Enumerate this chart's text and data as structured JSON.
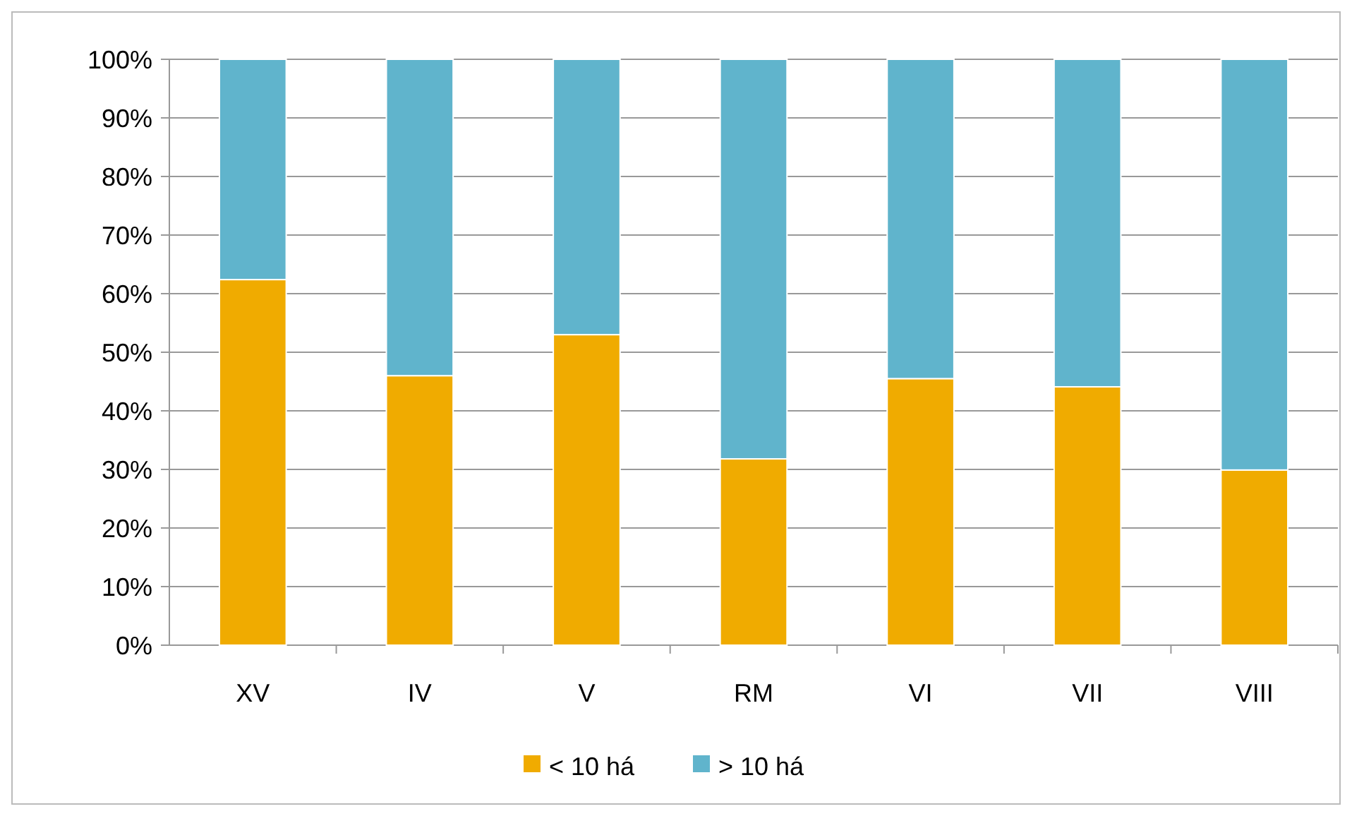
{
  "chart_data": {
    "type": "bar",
    "stacked": true,
    "categories": [
      "XV",
      "IV",
      "V",
      "RM",
      "VI",
      "VII",
      "VIII"
    ],
    "series": [
      {
        "name": "< 10 há",
        "color": "#f0ab00",
        "values": [
          62.4,
          46,
          53,
          31.8,
          45.5,
          44.1,
          29.9
        ]
      },
      {
        "name": "> 10 há",
        "color": "#60b4cc",
        "values": [
          37.6,
          54,
          47,
          68.2,
          54.5,
          55.9,
          70.1
        ]
      }
    ],
    "ylim": [
      0,
      100
    ],
    "yticks": [
      {
        "value": 0,
        "label": "0%"
      },
      {
        "value": 10,
        "label": "10%"
      },
      {
        "value": 20,
        "label": "20%"
      },
      {
        "value": 30,
        "label": "30%"
      },
      {
        "value": 40,
        "label": "40%"
      },
      {
        "value": 50,
        "label": "50%"
      },
      {
        "value": 60,
        "label": "60%"
      },
      {
        "value": 70,
        "label": "70%"
      },
      {
        "value": 80,
        "label": "80%"
      },
      {
        "value": 90,
        "label": "90%"
      },
      {
        "value": 100,
        "label": "100%"
      }
    ],
    "grid": "y",
    "legend": "bottom"
  }
}
